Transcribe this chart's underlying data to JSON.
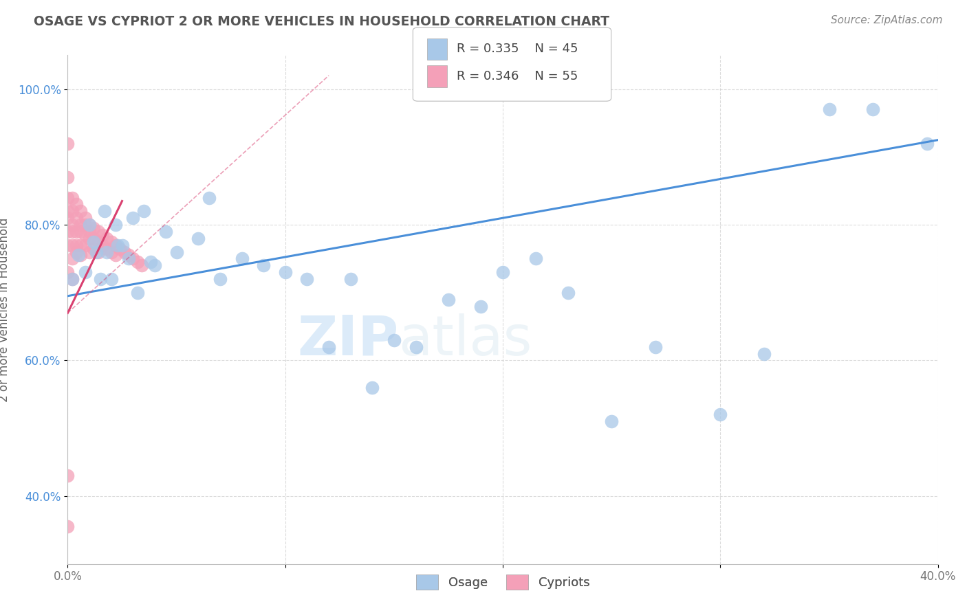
{
  "title": "OSAGE VS CYPRIOT 2 OR MORE VEHICLES IN HOUSEHOLD CORRELATION CHART",
  "source": "Source: ZipAtlas.com",
  "ylabel": "2 or more Vehicles in Household",
  "xlim": [
    0.0,
    0.4
  ],
  "ylim": [
    0.3,
    1.05
  ],
  "xticks": [
    0.0,
    0.1,
    0.2,
    0.3,
    0.4
  ],
  "xtick_labels": [
    "0.0%",
    "",
    "",
    "",
    "40.0%"
  ],
  "ytick_labels": [
    "40.0%",
    "60.0%",
    "80.0%",
    "100.0%"
  ],
  "yticks": [
    0.4,
    0.6,
    0.8,
    1.0
  ],
  "legend_R_osage": "R = 0.335",
  "legend_N_osage": "N = 45",
  "legend_R_cypriot": "R = 0.346",
  "legend_N_cypriot": "N = 55",
  "osage_color": "#a8c8e8",
  "cypriot_color": "#f4a0b8",
  "osage_line_color": "#4a8fd9",
  "cypriot_line_color": "#d94070",
  "watermark_zip": "ZIP",
  "watermark_atlas": "atlas",
  "background_color": "#ffffff",
  "grid_color": "#cccccc",
  "title_color": "#555555",
  "osage_x": [
    0.002,
    0.005,
    0.008,
    0.01,
    0.012,
    0.013,
    0.015,
    0.017,
    0.018,
    0.02,
    0.022,
    0.023,
    0.025,
    0.028,
    0.03,
    0.032,
    0.035,
    0.038,
    0.04,
    0.045,
    0.05,
    0.06,
    0.065,
    0.07,
    0.08,
    0.09,
    0.1,
    0.11,
    0.12,
    0.13,
    0.14,
    0.15,
    0.16,
    0.175,
    0.19,
    0.2,
    0.215,
    0.23,
    0.25,
    0.27,
    0.3,
    0.32,
    0.35,
    0.37,
    0.395
  ],
  "osage_y": [
    0.72,
    0.755,
    0.73,
    0.8,
    0.775,
    0.76,
    0.72,
    0.82,
    0.76,
    0.72,
    0.8,
    0.77,
    0.77,
    0.75,
    0.81,
    0.7,
    0.82,
    0.745,
    0.74,
    0.79,
    0.76,
    0.78,
    0.84,
    0.72,
    0.75,
    0.74,
    0.73,
    0.72,
    0.62,
    0.72,
    0.56,
    0.63,
    0.62,
    0.69,
    0.68,
    0.73,
    0.75,
    0.7,
    0.51,
    0.62,
    0.52,
    0.61,
    0.97,
    0.97,
    0.92
  ],
  "cypriot_x": [
    0.0,
    0.0,
    0.0,
    0.0,
    0.0,
    0.0,
    0.0,
    0.0,
    0.002,
    0.002,
    0.002,
    0.002,
    0.002,
    0.002,
    0.002,
    0.004,
    0.004,
    0.004,
    0.004,
    0.004,
    0.006,
    0.006,
    0.006,
    0.006,
    0.006,
    0.008,
    0.008,
    0.008,
    0.008,
    0.01,
    0.01,
    0.01,
    0.01,
    0.012,
    0.012,
    0.012,
    0.014,
    0.014,
    0.014,
    0.016,
    0.016,
    0.018,
    0.018,
    0.02,
    0.02,
    0.022,
    0.022,
    0.024,
    0.026,
    0.028,
    0.03,
    0.032,
    0.034,
    0.0,
    0.0
  ],
  "cypriot_y": [
    0.92,
    0.87,
    0.84,
    0.82,
    0.81,
    0.79,
    0.77,
    0.73,
    0.84,
    0.82,
    0.8,
    0.79,
    0.77,
    0.75,
    0.72,
    0.83,
    0.81,
    0.79,
    0.77,
    0.76,
    0.82,
    0.8,
    0.79,
    0.77,
    0.755,
    0.81,
    0.8,
    0.785,
    0.77,
    0.8,
    0.79,
    0.78,
    0.76,
    0.795,
    0.78,
    0.765,
    0.79,
    0.775,
    0.76,
    0.785,
    0.77,
    0.78,
    0.765,
    0.775,
    0.76,
    0.77,
    0.755,
    0.765,
    0.76,
    0.755,
    0.75,
    0.745,
    0.74,
    0.43,
    0.355
  ]
}
